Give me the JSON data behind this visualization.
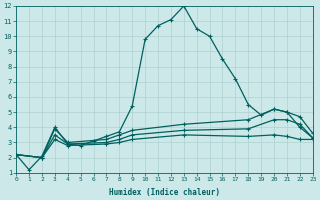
{
  "xlabel": "Humidex (Indice chaleur)",
  "bg_color": "#cde8e8",
  "grid_color": "#b0d0d0",
  "line_color": "#006060",
  "xlim": [
    0,
    23
  ],
  "ylim": [
    1,
    12
  ],
  "x_ticks": [
    0,
    1,
    2,
    3,
    4,
    5,
    6,
    7,
    8,
    9,
    10,
    11,
    12,
    13,
    14,
    15,
    16,
    17,
    18,
    19,
    20,
    21,
    22,
    23
  ],
  "y_ticks": [
    1,
    2,
    3,
    4,
    5,
    6,
    7,
    8,
    9,
    10,
    11,
    12
  ],
  "line_max": {
    "x": [
      0,
      1,
      2,
      3,
      4,
      5,
      6,
      7,
      8,
      9,
      10,
      11,
      12,
      13,
      14,
      15,
      16,
      17,
      18,
      19,
      20,
      21,
      22,
      23
    ],
    "y": [
      2.2,
      1.2,
      2.1,
      4.0,
      2.9,
      2.8,
      3.1,
      3.4,
      3.7,
      5.4,
      9.8,
      10.7,
      11.1,
      12.0,
      10.5,
      10.0,
      8.5,
      7.2,
      5.5,
      4.8,
      5.2,
      5.0,
      4.0,
      3.3
    ]
  },
  "line_p75": {
    "x": [
      0,
      2,
      3,
      4,
      7,
      8,
      9,
      13,
      18,
      20,
      21,
      22,
      23
    ],
    "y": [
      2.2,
      2.0,
      3.9,
      3.0,
      3.2,
      3.5,
      3.8,
      4.2,
      4.5,
      5.2,
      5.0,
      4.7,
      3.6
    ]
  },
  "line_med": {
    "x": [
      0,
      2,
      3,
      4,
      7,
      8,
      9,
      13,
      18,
      20,
      21,
      22,
      23
    ],
    "y": [
      2.2,
      2.0,
      3.5,
      2.9,
      3.0,
      3.2,
      3.5,
      3.8,
      3.9,
      4.5,
      4.5,
      4.2,
      3.3
    ]
  },
  "line_p25": {
    "x": [
      0,
      2,
      3,
      4,
      7,
      8,
      9,
      13,
      18,
      20,
      21,
      22,
      23
    ],
    "y": [
      2.2,
      2.0,
      3.2,
      2.8,
      2.9,
      3.0,
      3.2,
      3.5,
      3.4,
      3.5,
      3.4,
      3.2,
      3.2
    ]
  }
}
